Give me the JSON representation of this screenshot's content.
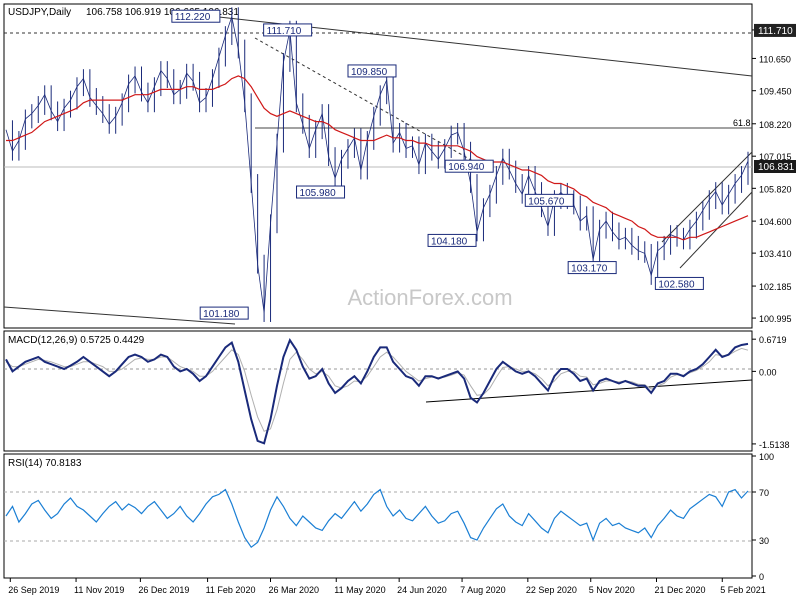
{
  "chart_data": [
    {
      "type": "candlestick",
      "panel": "price",
      "title": "USDJPY,Daily",
      "ohlc_text": "106.758 106.919 106.665 106.831",
      "current_price": "106.831",
      "y_ticks": [
        "111.710",
        "110.650",
        "109.450",
        "108.220",
        "107.015",
        "105.820",
        "104.600",
        "103.410",
        "102.185",
        "100.995"
      ],
      "ylim": [
        100.7,
        112.6
      ],
      "fib_label": "61.8",
      "annotations": [
        {
          "label": "112.220",
          "date": "2020-02-21",
          "value": 112.22
        },
        {
          "label": "111.710",
          "date": "2020-03-24",
          "value": 111.71
        },
        {
          "label": "109.850",
          "date": "2020-06-05",
          "value": 109.85
        },
        {
          "label": "105.980",
          "date": "2020-04-30",
          "value": 105.98
        },
        {
          "label": "104.180",
          "date": "2020-07-31",
          "value": 104.18
        },
        {
          "label": "106.940",
          "date": "2020-08-12",
          "value": 106.94
        },
        {
          "label": "105.670",
          "date": "2020-10-07",
          "value": 105.67
        },
        {
          "label": "103.170",
          "date": "2020-11-06",
          "value": 103.17
        },
        {
          "label": "102.580",
          "date": "2021-01-06",
          "value": 102.58
        },
        {
          "label": "101.180",
          "date": "2020-03-09",
          "value": 101.18
        }
      ],
      "watermark": "ActionForex.com",
      "x_ticks": [
        "26 Sep 2019",
        "11 Nov 2019",
        "26 Dec 2019",
        "11 Feb 2020",
        "26 Mar 2020",
        "11 May 2020",
        "24 Jun 2020",
        "7 Aug 2020",
        "22 Sep 2020",
        "5 Nov 2020",
        "21 Dec 2020",
        "5 Feb 2021"
      ],
      "series": [
        {
          "kind": "close",
          "color": "#1a2a7a",
          "values": [
            108.0,
            107.2,
            107.6,
            108.4,
            108.6,
            108.9,
            109.3,
            108.7,
            108.3,
            108.8,
            109.1,
            109.6,
            109.9,
            109.2,
            108.9,
            108.6,
            108.2,
            108.5,
            109.0,
            109.7,
            110.0,
            109.4,
            109.0,
            109.6,
            110.2,
            109.9,
            109.3,
            109.5,
            110.1,
            109.8,
            109.0,
            109.2,
            109.9,
            110.7,
            111.5,
            112.2,
            111.0,
            109.0,
            106.0,
            103.0,
            101.2,
            104.5,
            107.5,
            110.5,
            111.7,
            109.0,
            108.2,
            107.3,
            108.0,
            108.6,
            107.0,
            106.2,
            106.9,
            107.3,
            107.7,
            106.5,
            107.6,
            108.5,
            109.3,
            109.85,
            107.5,
            107.9,
            107.3,
            107.4,
            106.7,
            107.5,
            107.2,
            106.9,
            107.3,
            107.8,
            107.9,
            107.2,
            106.0,
            104.2,
            105.1,
            105.6,
            106.3,
            106.94,
            106.5,
            106.0,
            105.6,
            106.3,
            105.7,
            105.1,
            104.4,
            105.4,
            105.67,
            105.4,
            105.2,
            104.6,
            104.8,
            103.17,
            104.3,
            104.6,
            104.2,
            103.9,
            104.0,
            103.7,
            103.5,
            103.4,
            102.58,
            103.5,
            103.7,
            104.1,
            104.0,
            103.9,
            104.3,
            104.6,
            105.0,
            105.4,
            105.7,
            105.2,
            105.6,
            106.0,
            106.3,
            106.831
          ]
        },
        {
          "kind": "ma",
          "color": "#d01818",
          "values": [
            107.6,
            107.6,
            107.7,
            107.8,
            107.9,
            108.1,
            108.3,
            108.4,
            108.5,
            108.6,
            108.7,
            108.8,
            109.0,
            109.1,
            109.1,
            109.1,
            109.1,
            109.1,
            109.1,
            109.2,
            109.3,
            109.3,
            109.3,
            109.4,
            109.5,
            109.5,
            109.5,
            109.5,
            109.6,
            109.6,
            109.5,
            109.5,
            109.5,
            109.6,
            109.7,
            109.9,
            110.0,
            109.9,
            109.6,
            109.2,
            108.8,
            108.6,
            108.5,
            108.6,
            108.7,
            108.6,
            108.5,
            108.4,
            108.3,
            108.3,
            108.2,
            108.0,
            107.9,
            107.8,
            107.7,
            107.6,
            107.6,
            107.6,
            107.7,
            107.8,
            107.7,
            107.7,
            107.6,
            107.6,
            107.5,
            107.5,
            107.4,
            107.4,
            107.4,
            107.4,
            107.4,
            107.3,
            107.2,
            107.0,
            106.9,
            106.8,
            106.8,
            106.8,
            106.7,
            106.6,
            106.5,
            106.5,
            106.4,
            106.3,
            106.1,
            106.0,
            106.0,
            105.9,
            105.8,
            105.6,
            105.5,
            105.3,
            105.2,
            105.1,
            104.9,
            104.8,
            104.7,
            104.6,
            104.4,
            104.3,
            104.1,
            104.0,
            104.0,
            104.0,
            104.0,
            103.9,
            104.0,
            104.0,
            104.1,
            104.2,
            104.3,
            104.4,
            104.5,
            104.6,
            104.7,
            104.8
          ]
        }
      ]
    },
    {
      "type": "line",
      "panel": "macd",
      "title": "MACD(12,26,9) 0.5725 0.4429",
      "y_ticks": [
        "0.6719",
        "0.00",
        "-1.5138"
      ],
      "ylim": [
        -1.62,
        0.78
      ],
      "series": [
        {
          "kind": "macd",
          "color": "#1a2a7a",
          "values": [
            0.25,
            0.0,
            0.1,
            0.2,
            0.25,
            0.3,
            0.2,
            0.15,
            0.1,
            0.05,
            0.12,
            0.2,
            0.3,
            0.2,
            0.1,
            0.0,
            -0.1,
            0.0,
            0.15,
            0.3,
            0.35,
            0.3,
            0.2,
            0.25,
            0.35,
            0.3,
            0.1,
            0.0,
            0.05,
            -0.05,
            -0.2,
            -0.1,
            0.1,
            0.3,
            0.5,
            0.6,
            0.2,
            -0.4,
            -1.0,
            -1.45,
            -1.5,
            -1.0,
            -0.3,
            0.3,
            0.65,
            0.45,
            0.1,
            -0.15,
            -0.1,
            0.05,
            -0.25,
            -0.45,
            -0.35,
            -0.2,
            -0.1,
            -0.25,
            0.0,
            0.3,
            0.5,
            0.5,
            0.2,
            0.05,
            -0.1,
            -0.15,
            -0.3,
            -0.1,
            -0.1,
            -0.15,
            -0.1,
            -0.05,
            0.0,
            -0.15,
            -0.55,
            -0.65,
            -0.45,
            -0.2,
            0.05,
            0.2,
            0.1,
            0.0,
            -0.05,
            0.0,
            -0.1,
            -0.25,
            -0.4,
            -0.1,
            0.05,
            0.05,
            -0.05,
            -0.2,
            -0.15,
            -0.4,
            -0.2,
            -0.15,
            -0.2,
            -0.25,
            -0.2,
            -0.25,
            -0.3,
            -0.3,
            -0.45,
            -0.25,
            -0.2,
            -0.05,
            -0.05,
            -0.1,
            0.0,
            0.05,
            0.15,
            0.3,
            0.45,
            0.3,
            0.35,
            0.5,
            0.55,
            0.5725
          ]
        },
        {
          "kind": "signal",
          "color": "#b0b0b0",
          "values": [
            0.2,
            0.1,
            0.1,
            0.15,
            0.2,
            0.25,
            0.23,
            0.2,
            0.15,
            0.1,
            0.1,
            0.15,
            0.2,
            0.2,
            0.15,
            0.1,
            0.0,
            0.0,
            0.05,
            0.15,
            0.25,
            0.28,
            0.25,
            0.25,
            0.3,
            0.3,
            0.2,
            0.1,
            0.05,
            0.0,
            -0.1,
            -0.1,
            0.0,
            0.15,
            0.3,
            0.45,
            0.35,
            0.0,
            -0.5,
            -0.95,
            -1.25,
            -1.2,
            -0.8,
            -0.25,
            0.25,
            0.4,
            0.25,
            0.05,
            -0.05,
            0.0,
            -0.1,
            -0.3,
            -0.35,
            -0.3,
            -0.2,
            -0.22,
            -0.1,
            0.1,
            0.3,
            0.4,
            0.3,
            0.15,
            0.0,
            -0.1,
            -0.2,
            -0.15,
            -0.12,
            -0.13,
            -0.12,
            -0.08,
            -0.03,
            -0.08,
            -0.3,
            -0.5,
            -0.48,
            -0.35,
            -0.12,
            0.08,
            0.1,
            0.05,
            0.0,
            0.0,
            -0.05,
            -0.15,
            -0.3,
            -0.2,
            -0.05,
            0.0,
            0.0,
            -0.1,
            -0.12,
            -0.28,
            -0.25,
            -0.2,
            -0.2,
            -0.22,
            -0.2,
            -0.22,
            -0.27,
            -0.28,
            -0.37,
            -0.3,
            -0.25,
            -0.12,
            -0.07,
            -0.08,
            -0.03,
            0.02,
            0.1,
            0.2,
            0.35,
            0.33,
            0.34,
            0.42,
            0.48,
            0.4429
          ]
        }
      ]
    },
    {
      "type": "line",
      "panel": "rsi",
      "title": "RSI(14) 70.8183",
      "y_ticks": [
        "100",
        "70",
        "30",
        "0"
      ],
      "ylim": [
        0,
        100
      ],
      "series": [
        {
          "kind": "rsi",
          "color": "#1b7fd4",
          "values": [
            50,
            58,
            45,
            52,
            60,
            63,
            55,
            48,
            52,
            60,
            65,
            58,
            55,
            50,
            45,
            52,
            58,
            62,
            55,
            60,
            57,
            52,
            58,
            62,
            55,
            48,
            52,
            58,
            50,
            45,
            52,
            60,
            66,
            68,
            72,
            60,
            45,
            32,
            24,
            28,
            40,
            55,
            66,
            58,
            48,
            42,
            50,
            45,
            40,
            38,
            46,
            52,
            48,
            55,
            62,
            54,
            60,
            68,
            72,
            58,
            50,
            55,
            48,
            46,
            52,
            58,
            50,
            44,
            46,
            52,
            54,
            44,
            32,
            30,
            40,
            48,
            56,
            60,
            50,
            45,
            42,
            52,
            46,
            40,
            36,
            48,
            54,
            50,
            46,
            42,
            44,
            30,
            44,
            48,
            42,
            44,
            40,
            38,
            36,
            40,
            32,
            42,
            48,
            55,
            50,
            48,
            56,
            60,
            64,
            68,
            66,
            58,
            70,
            72,
            65,
            70.8
          ]
        }
      ]
    }
  ]
}
